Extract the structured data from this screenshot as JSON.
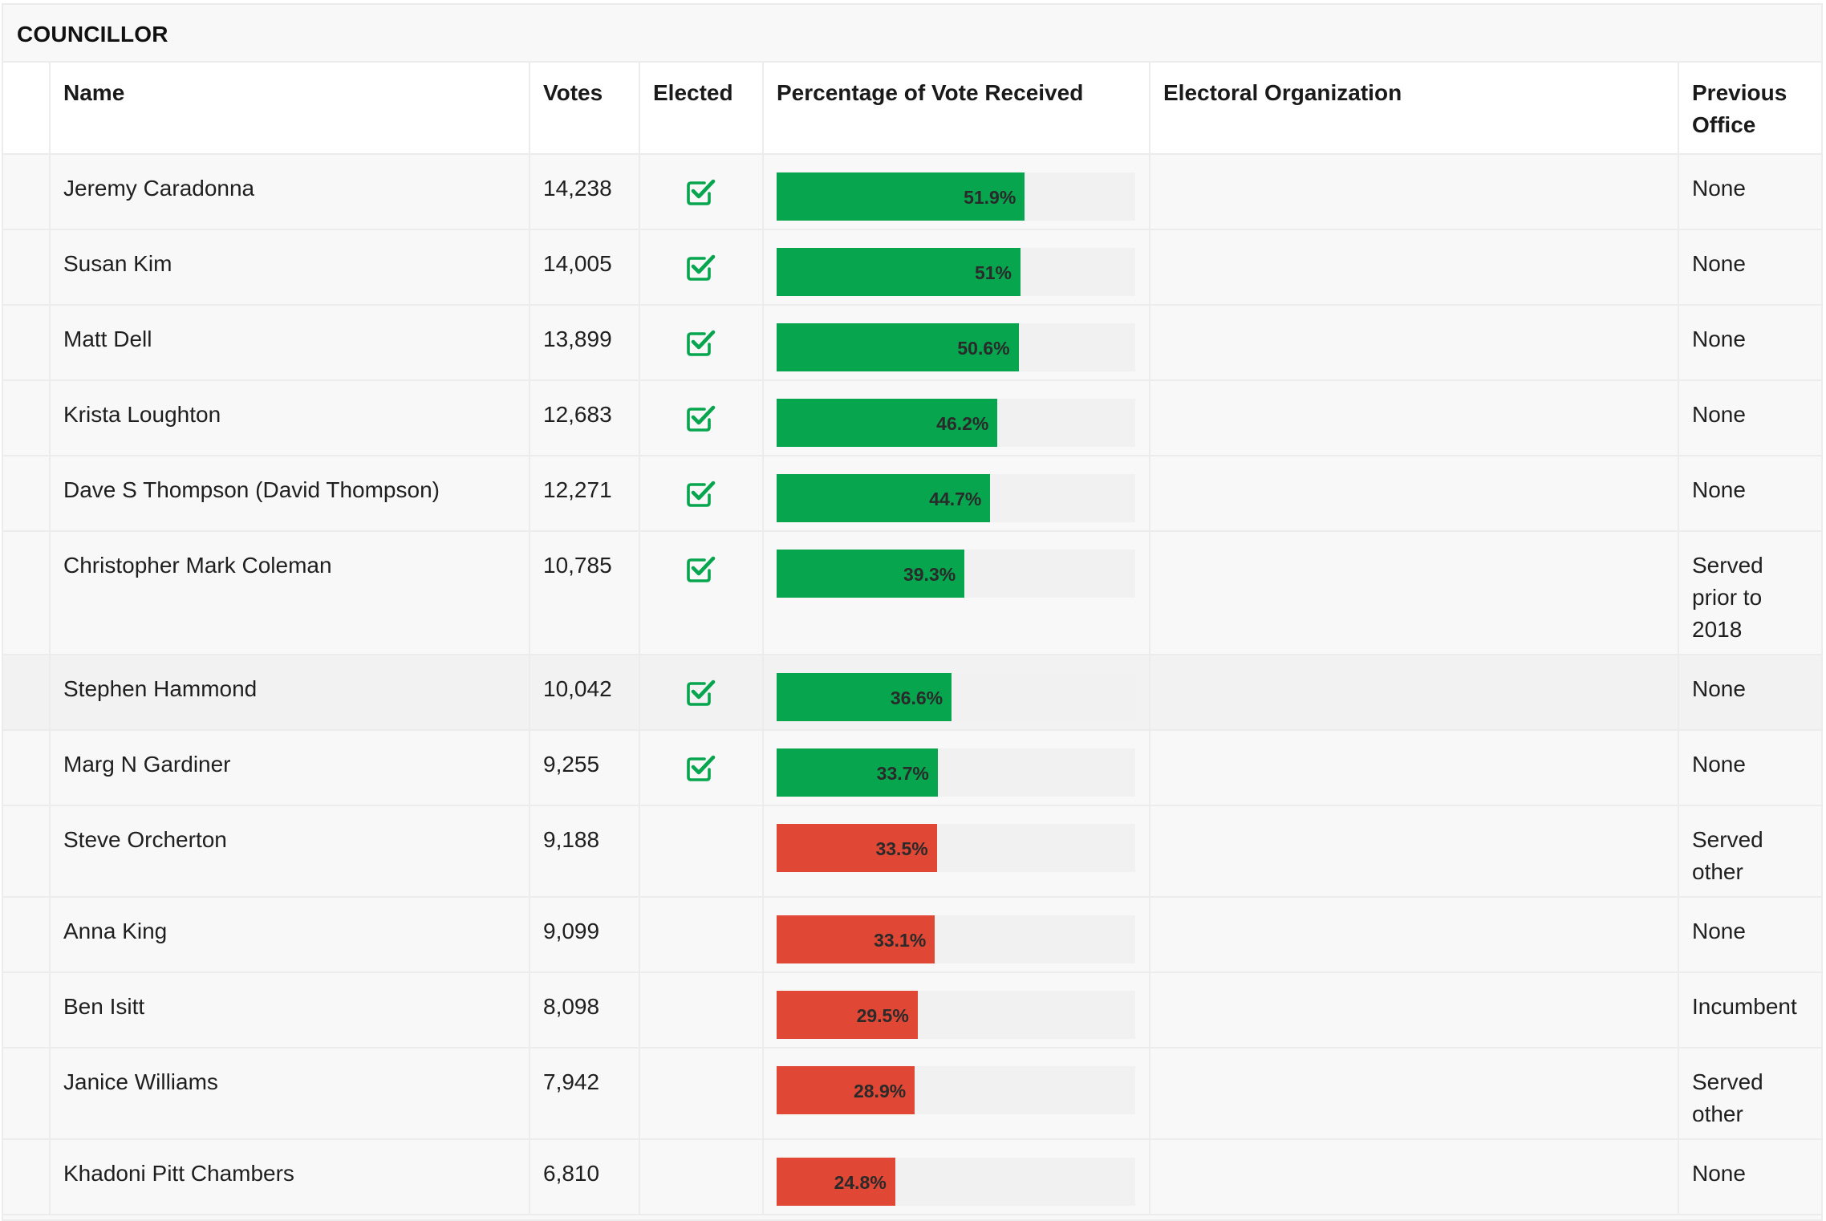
{
  "section": {
    "title": "COUNCILLOR"
  },
  "columns": {
    "name": "Name",
    "votes": "Votes",
    "elected": "Elected",
    "percentage": "Percentage of Vote Received",
    "organization": "Electoral Organization",
    "previous": "Previous Office"
  },
  "colors": {
    "elected": "#06a54e",
    "not_elected": "#e04735",
    "check": "#06a54e"
  },
  "icons": {
    "elected": "checkbox-checked-icon"
  },
  "rows": [
    {
      "name": "Jeremy Caradonna",
      "votes": "14,238",
      "elected": true,
      "pct": 51.9,
      "pct_label": "51.9%",
      "organization": "",
      "previous": "None"
    },
    {
      "name": "Susan Kim",
      "votes": "14,005",
      "elected": true,
      "pct": 51.0,
      "pct_label": "51%",
      "organization": "",
      "previous": "None"
    },
    {
      "name": "Matt Dell",
      "votes": "13,899",
      "elected": true,
      "pct": 50.6,
      "pct_label": "50.6%",
      "organization": "",
      "previous": "None"
    },
    {
      "name": "Krista Loughton",
      "votes": "12,683",
      "elected": true,
      "pct": 46.2,
      "pct_label": "46.2%",
      "organization": "",
      "previous": "None"
    },
    {
      "name": "Dave S Thompson (David Thompson)",
      "votes": "12,271",
      "elected": true,
      "pct": 44.7,
      "pct_label": "44.7%",
      "organization": "",
      "previous": "None"
    },
    {
      "name": "Christopher Mark Coleman",
      "votes": "10,785",
      "elected": true,
      "pct": 39.3,
      "pct_label": "39.3%",
      "organization": "",
      "previous": "Served prior to 2018"
    },
    {
      "name": "Stephen Hammond",
      "votes": "10,042",
      "elected": true,
      "pct": 36.6,
      "pct_label": "36.6%",
      "organization": "",
      "previous": "None"
    },
    {
      "name": "Marg N Gardiner",
      "votes": "9,255",
      "elected": true,
      "pct": 33.7,
      "pct_label": "33.7%",
      "organization": "",
      "previous": "None"
    },
    {
      "name": "Steve Orcherton",
      "votes": "9,188",
      "elected": false,
      "pct": 33.5,
      "pct_label": "33.5%",
      "organization": "",
      "previous": "Served other"
    },
    {
      "name": "Anna King",
      "votes": "9,099",
      "elected": false,
      "pct": 33.1,
      "pct_label": "33.1%",
      "organization": "",
      "previous": "None"
    },
    {
      "name": "Ben Isitt",
      "votes": "8,098",
      "elected": false,
      "pct": 29.5,
      "pct_label": "29.5%",
      "organization": "",
      "previous": "Incumbent"
    },
    {
      "name": "Janice Williams",
      "votes": "7,942",
      "elected": false,
      "pct": 28.9,
      "pct_label": "28.9%",
      "organization": "",
      "previous": "Served other"
    },
    {
      "name": "Khadoni Pitt Chambers",
      "votes": "6,810",
      "elected": false,
      "pct": 24.8,
      "pct_label": "24.8%",
      "organization": "",
      "previous": "None"
    }
  ]
}
